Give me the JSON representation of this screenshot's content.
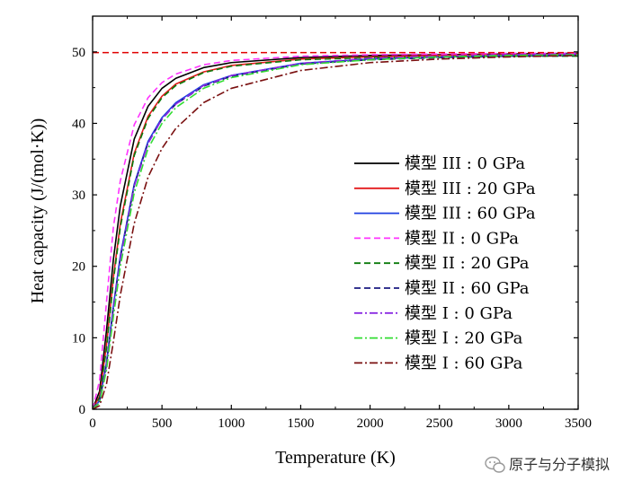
{
  "chart_data": {
    "type": "line",
    "title": "",
    "xlabel": "Temperature (K)",
    "ylabel": "Heat capacity (J/(mol·K))",
    "xlim": [
      0,
      3500
    ],
    "ylim": [
      0,
      55
    ],
    "xticks": [
      0,
      500,
      1000,
      1500,
      2000,
      2500,
      3000,
      3500
    ],
    "yticks": [
      0,
      10,
      20,
      30,
      40,
      50
    ],
    "grid": false,
    "legend_position": "center-right",
    "reference_line": {
      "y": 49.9,
      "style": "dashed",
      "color": "#e00000"
    },
    "series": [
      {
        "name": "模型 III : 0 GPa",
        "color": "#000000",
        "dash": "solid",
        "x": [
          0,
          50,
          100,
          150,
          200,
          300,
          400,
          500,
          600,
          800,
          1000,
          1500,
          2000,
          2500,
          3000,
          3500
        ],
        "y": [
          0,
          2.5,
          11,
          21,
          28.5,
          37.8,
          42.4,
          44.9,
          46.3,
          47.8,
          48.5,
          49.2,
          49.5,
          49.6,
          49.7,
          49.8
        ]
      },
      {
        "name": "模型 III : 20 GPa",
        "color": "#e41a1c",
        "dash": "solid",
        "x": [
          0,
          50,
          100,
          150,
          200,
          300,
          400,
          500,
          600,
          800,
          1000,
          1500,
          2000,
          2500,
          3000,
          3500
        ],
        "y": [
          0,
          1.8,
          9,
          18.5,
          26,
          35.8,
          41,
          43.8,
          45.5,
          47.2,
          48.1,
          49.0,
          49.3,
          49.5,
          49.6,
          49.7
        ]
      },
      {
        "name": "模型 III : 60 GPa",
        "color": "#1f3fe0",
        "dash": "solid",
        "x": [
          0,
          50,
          100,
          150,
          200,
          300,
          400,
          500,
          600,
          800,
          1000,
          1500,
          2000,
          2500,
          3000,
          3500
        ],
        "y": [
          0,
          1.2,
          6.5,
          14.5,
          21.5,
          31.5,
          37.5,
          40.8,
          42.9,
          45.4,
          46.7,
          48.4,
          49.0,
          49.3,
          49.5,
          49.6
        ]
      },
      {
        "name": "模型 II : 0 GPa",
        "color": "#ff33ff",
        "dash": "dashed",
        "x": [
          0,
          50,
          100,
          150,
          200,
          300,
          400,
          500,
          600,
          800,
          1000,
          1500,
          2000,
          2500,
          3000,
          3500
        ],
        "y": [
          0,
          4,
          15,
          25.5,
          32,
          39.8,
          43.6,
          45.7,
          46.9,
          48.2,
          48.8,
          49.4,
          49.6,
          49.7,
          49.8,
          49.8
        ]
      },
      {
        "name": "模型 II : 20 GPa",
        "color": "#0a7a0a",
        "dash": "dashed",
        "x": [
          0,
          50,
          100,
          150,
          200,
          300,
          400,
          500,
          600,
          800,
          1000,
          1500,
          2000,
          2500,
          3000,
          3500
        ],
        "y": [
          0,
          1.6,
          8.5,
          18,
          25.5,
          35.5,
          40.7,
          43.6,
          45.3,
          47.1,
          48.0,
          48.9,
          49.2,
          49.3,
          49.4,
          49.4
        ]
      },
      {
        "name": "模型 II : 60 GPa",
        "color": "#1a1a80",
        "dash": "dashed",
        "x": [
          0,
          50,
          100,
          150,
          200,
          300,
          400,
          500,
          600,
          800,
          1000,
          1500,
          2000,
          2500,
          3000,
          3500
        ],
        "y": [
          0,
          1.1,
          6.2,
          14.2,
          21.2,
          31.3,
          37.3,
          40.6,
          42.7,
          45.2,
          46.6,
          48.3,
          48.9,
          49.2,
          49.4,
          49.5
        ]
      },
      {
        "name": "模型 I : 0 GPa",
        "color": "#8a2be2",
        "dash": "dash-dot",
        "x": [
          0,
          50,
          100,
          150,
          200,
          300,
          400,
          500,
          600,
          800,
          1000,
          1500,
          2000,
          2500,
          3000,
          3500
        ],
        "y": [
          0,
          1.1,
          6,
          14,
          21,
          31.2,
          37.2,
          40.6,
          42.7,
          45.3,
          46.7,
          48.4,
          49.1,
          49.4,
          49.6,
          49.7
        ]
      },
      {
        "name": "模型 I : 20 GPa",
        "color": "#33dd33",
        "dash": "dash-dot",
        "x": [
          0,
          50,
          100,
          150,
          200,
          300,
          400,
          500,
          600,
          800,
          1000,
          1500,
          2000,
          2500,
          3000,
          3500
        ],
        "y": [
          0,
          0.9,
          5.5,
          13,
          20,
          30.3,
          36.5,
          40,
          42.2,
          44.9,
          46.4,
          48.2,
          48.9,
          49.3,
          49.5,
          49.6
        ]
      },
      {
        "name": "模型 I : 60 GPa",
        "color": "#7a1010",
        "dash": "dash-dot",
        "x": [
          0,
          50,
          100,
          150,
          200,
          300,
          400,
          500,
          600,
          800,
          1000,
          1500,
          2000,
          2500,
          3000,
          3500
        ],
        "y": [
          0,
          0.5,
          3.5,
          9.5,
          16,
          26,
          32.5,
          36.5,
          39.3,
          42.9,
          44.9,
          47.4,
          48.5,
          49.0,
          49.3,
          49.5
        ]
      }
    ]
  },
  "watermark": {
    "text": "原子与分子模拟",
    "icon": "wechat-icon"
  }
}
